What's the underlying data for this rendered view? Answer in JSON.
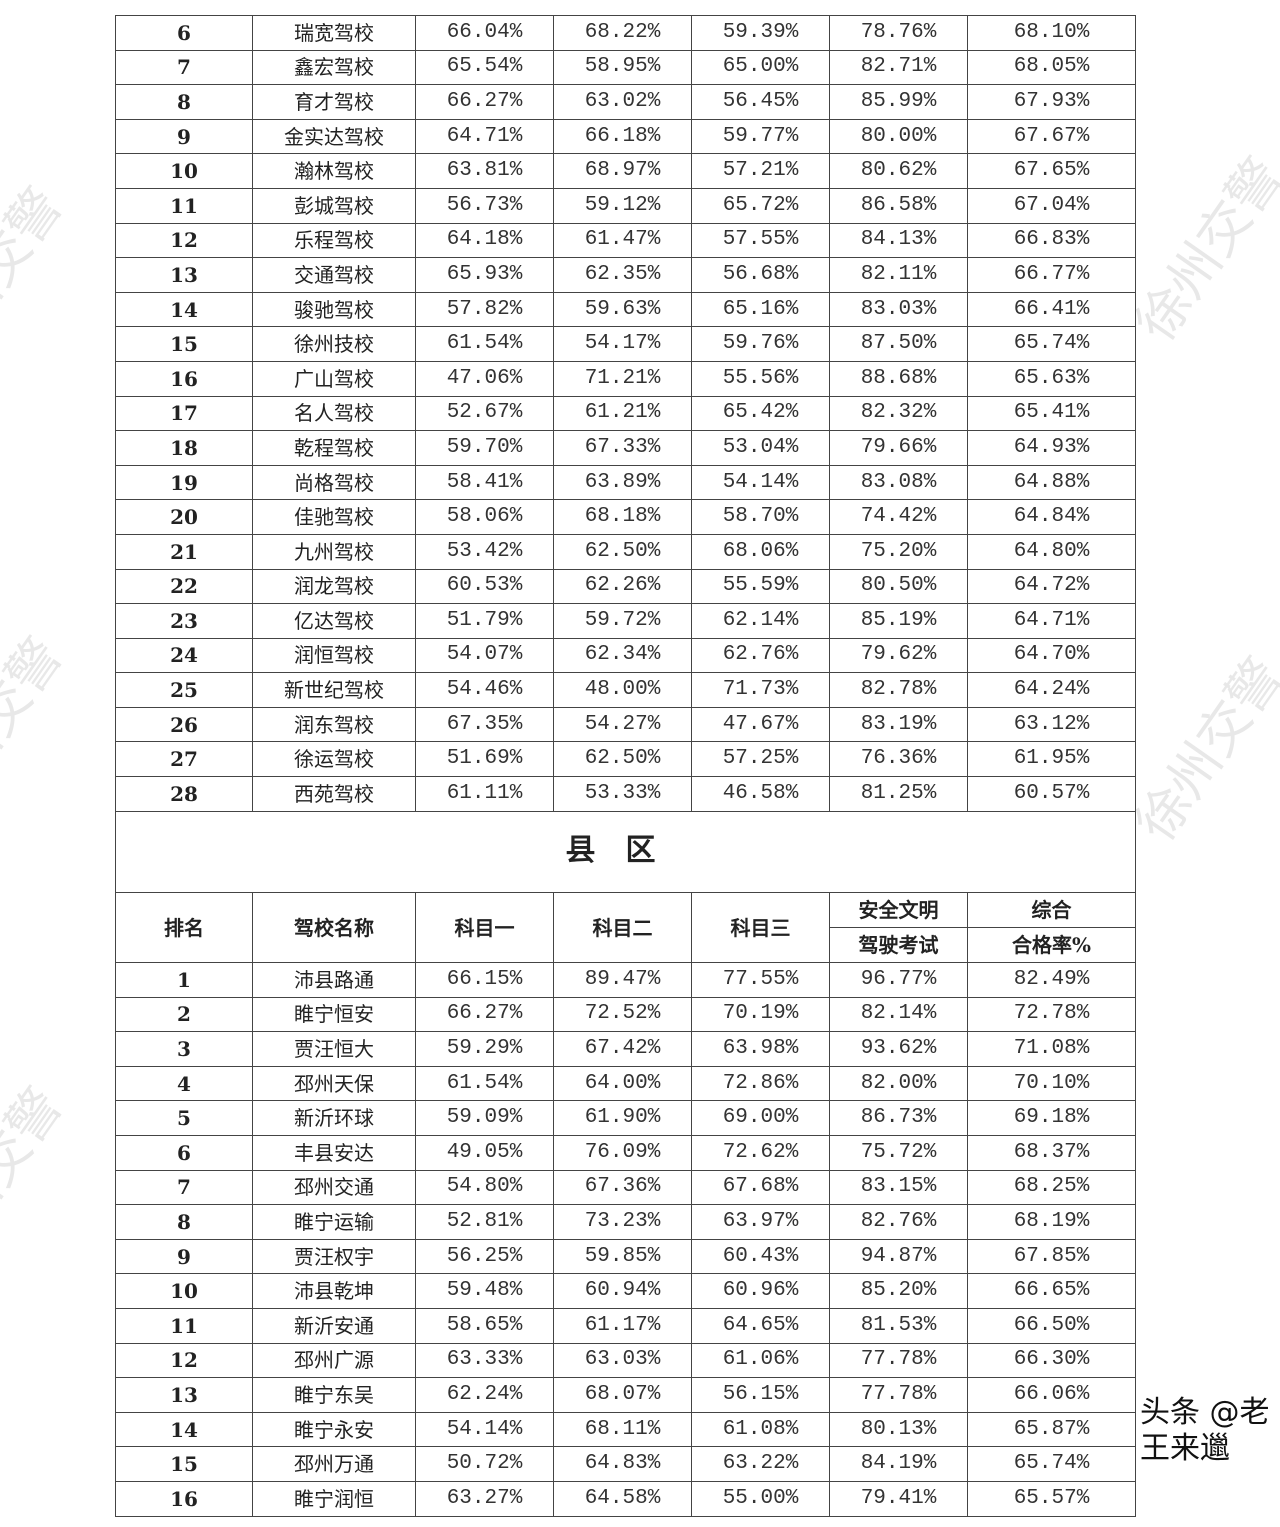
{
  "city_rows": [
    [
      "6",
      "瑞宽驾校",
      "66.04%",
      "68.22%",
      "59.39%",
      "78.76%",
      "68.10%"
    ],
    [
      "7",
      "鑫宏驾校",
      "65.54%",
      "58.95%",
      "65.00%",
      "82.71%",
      "68.05%"
    ],
    [
      "8",
      "育才驾校",
      "66.27%",
      "63.02%",
      "56.45%",
      "85.99%",
      "67.93%"
    ],
    [
      "9",
      "金实达驾校",
      "64.71%",
      "66.18%",
      "59.77%",
      "80.00%",
      "67.67%"
    ],
    [
      "10",
      "瀚林驾校",
      "63.81%",
      "68.97%",
      "57.21%",
      "80.62%",
      "67.65%"
    ],
    [
      "11",
      "彭城驾校",
      "56.73%",
      "59.12%",
      "65.72%",
      "86.58%",
      "67.04%"
    ],
    [
      "12",
      "乐程驾校",
      "64.18%",
      "61.47%",
      "57.55%",
      "84.13%",
      "66.83%"
    ],
    [
      "13",
      "交通驾校",
      "65.93%",
      "62.35%",
      "56.68%",
      "82.11%",
      "66.77%"
    ],
    [
      "14",
      "骏驰驾校",
      "57.82%",
      "59.63%",
      "65.16%",
      "83.03%",
      "66.41%"
    ],
    [
      "15",
      "徐州技校",
      "61.54%",
      "54.17%",
      "59.76%",
      "87.50%",
      "65.74%"
    ],
    [
      "16",
      "广山驾校",
      "47.06%",
      "71.21%",
      "55.56%",
      "88.68%",
      "65.63%"
    ],
    [
      "17",
      "名人驾校",
      "52.67%",
      "61.21%",
      "65.42%",
      "82.32%",
      "65.41%"
    ],
    [
      "18",
      "乾程驾校",
      "59.70%",
      "67.33%",
      "53.04%",
      "79.66%",
      "64.93%"
    ],
    [
      "19",
      "尚格驾校",
      "58.41%",
      "63.89%",
      "54.14%",
      "83.08%",
      "64.88%"
    ],
    [
      "20",
      "佳驰驾校",
      "58.06%",
      "68.18%",
      "58.70%",
      "74.42%",
      "64.84%"
    ],
    [
      "21",
      "九州驾校",
      "53.42%",
      "62.50%",
      "68.06%",
      "75.20%",
      "64.80%"
    ],
    [
      "22",
      "润龙驾校",
      "60.53%",
      "62.26%",
      "55.59%",
      "80.50%",
      "64.72%"
    ],
    [
      "23",
      "亿达驾校",
      "51.79%",
      "59.72%",
      "62.14%",
      "85.19%",
      "64.71%"
    ],
    [
      "24",
      "润恒驾校",
      "54.07%",
      "62.34%",
      "62.76%",
      "79.62%",
      "64.70%"
    ],
    [
      "25",
      "新世纪驾校",
      "54.46%",
      "48.00%",
      "71.73%",
      "82.78%",
      "64.24%"
    ],
    [
      "26",
      "润东驾校",
      "67.35%",
      "54.27%",
      "47.67%",
      "83.19%",
      "63.12%"
    ],
    [
      "27",
      "徐运驾校",
      "51.69%",
      "62.50%",
      "57.25%",
      "76.36%",
      "61.95%"
    ],
    [
      "28",
      "西苑驾校",
      "61.11%",
      "53.33%",
      "46.58%",
      "81.25%",
      "60.57%"
    ]
  ],
  "county_title": "县区",
  "headers": {
    "rank": "排名",
    "name": "驾校名称",
    "k1": "科目一",
    "k2": "科目二",
    "k3": "科目三",
    "safe_1": "安全文明",
    "safe_2": "驾驶考试",
    "total_1": "综合",
    "total_2": "合格率%"
  },
  "county_rows": [
    [
      "1",
      "沛县路通",
      "66.15%",
      "89.47%",
      "77.55%",
      "96.77%",
      "82.49%"
    ],
    [
      "2",
      "睢宁恒安",
      "66.27%",
      "72.52%",
      "70.19%",
      "82.14%",
      "72.78%"
    ],
    [
      "3",
      "贾汪恒大",
      "59.29%",
      "67.42%",
      "63.98%",
      "93.62%",
      "71.08%"
    ],
    [
      "4",
      "邳州天保",
      "61.54%",
      "64.00%",
      "72.86%",
      "82.00%",
      "70.10%"
    ],
    [
      "5",
      "新沂环球",
      "59.09%",
      "61.90%",
      "69.00%",
      "86.73%",
      "69.18%"
    ],
    [
      "6",
      "丰县安达",
      "49.05%",
      "76.09%",
      "72.62%",
      "75.72%",
      "68.37%"
    ],
    [
      "7",
      "邳州交通",
      "54.80%",
      "67.36%",
      "67.68%",
      "83.15%",
      "68.25%"
    ],
    [
      "8",
      "睢宁运输",
      "52.81%",
      "73.23%",
      "63.97%",
      "82.76%",
      "68.19%"
    ],
    [
      "9",
      "贾汪权宇",
      "56.25%",
      "59.85%",
      "60.43%",
      "94.87%",
      "67.85%"
    ],
    [
      "10",
      "沛县乾坤",
      "59.48%",
      "60.94%",
      "60.96%",
      "85.20%",
      "66.65%"
    ],
    [
      "11",
      "新沂安通",
      "58.65%",
      "61.17%",
      "64.65%",
      "81.53%",
      "66.50%"
    ],
    [
      "12",
      "邳州广源",
      "63.33%",
      "63.03%",
      "61.06%",
      "77.78%",
      "66.30%"
    ],
    [
      "13",
      "睢宁东吴",
      "62.24%",
      "68.07%",
      "56.15%",
      "77.78%",
      "66.06%"
    ],
    [
      "14",
      "睢宁永安",
      "54.14%",
      "68.11%",
      "61.08%",
      "80.13%",
      "65.87%"
    ],
    [
      "15",
      "邳州万通",
      "50.72%",
      "64.83%",
      "63.22%",
      "84.19%",
      "65.74%"
    ],
    [
      "16",
      "睢宁润恒",
      "63.27%",
      "64.58%",
      "55.00%",
      "79.41%",
      "65.57%"
    ]
  ],
  "watermark": "徐州交警",
  "credit": "头条 @老王来邋"
}
